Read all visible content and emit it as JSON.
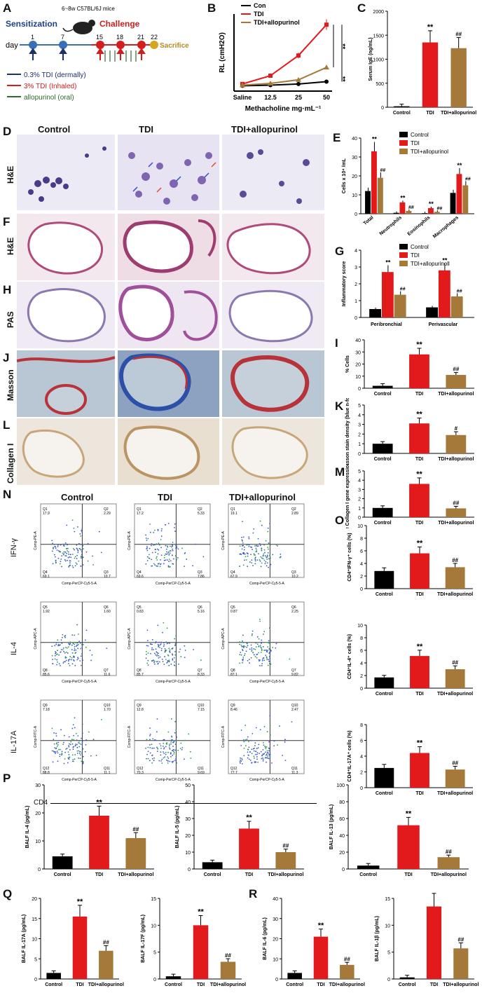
{
  "panels": {
    "A": "A",
    "B": "B",
    "C": "C",
    "D": "D",
    "E": "E",
    "F": "F",
    "G": "G",
    "H": "H",
    "I": "I",
    "J": "J",
    "K": "K",
    "L": "L",
    "M": "M",
    "N": "N",
    "O": "O",
    "P": "P",
    "Q": "Q",
    "R": "R"
  },
  "groups": {
    "control": "Control",
    "tdi": "TDI",
    "tdi_allo": "TDI+allopurinol"
  },
  "sig": {
    "star": "**",
    "hash": "##",
    "hash1": "#"
  },
  "schematic": {
    "mice": "6~8w C57BL/6J mice",
    "sensitization": "Sensitization",
    "challenge": "Challenge",
    "sacrifice": "Sacrifice",
    "day_label": "day",
    "days": [
      "1",
      "7",
      "15",
      "18",
      "21",
      "22"
    ],
    "legend": [
      {
        "text": "0.3% TDI (dermally)",
        "color": "#1f2f6b"
      },
      {
        "text": "3% TDI (Inhaled)",
        "color": "#d21e1e"
      },
      {
        "text": "allopurinol (oral)",
        "color": "#2e6b2e"
      }
    ]
  },
  "stain_labels": {
    "D": "H&E",
    "F": "H&E",
    "H": "PAS",
    "J": "Masson",
    "L": "Collagen I"
  },
  "colors": {
    "control": "#000000",
    "tdi": "#e31a1c",
    "tdi_allo": "#a5793a"
  },
  "chart_data": [
    {
      "panel": "B",
      "type": "line",
      "x": [
        "Saline",
        "12.5",
        "25",
        "50"
      ],
      "xlabel": "Methacholine mg·mL⁻¹",
      "ylabel": "RL (cmH2O)",
      "series": [
        {
          "name": "Con",
          "values": [
            0.9,
            1.0,
            1.2,
            1.6
          ]
        },
        {
          "name": "TDI",
          "values": [
            1.2,
            2.6,
            6.0,
            11.2
          ]
        },
        {
          "name": "TDI+allopurinol",
          "values": [
            1.0,
            1.3,
            1.9,
            4.0
          ]
        }
      ],
      "ylim": [
        0,
        13
      ]
    },
    {
      "panel": "C",
      "type": "bar",
      "categories": [
        "Control",
        "TDI",
        "TDI+allopurinol"
      ],
      "values": [
        20,
        1350,
        1230
      ],
      "ylabel": "Serum IgE (ng/mL)",
      "ylim": [
        0,
        2000
      ],
      "yticks": [
        "0",
        "500",
        "1000",
        "1500",
        "2000"
      ]
    },
    {
      "panel": "E",
      "type": "bar",
      "categories": [
        "Total",
        "Neutrophils",
        "Eosinophils",
        "Macrophages"
      ],
      "ylabel": "Cells x 10⁴ /mL",
      "ylim": [
        0,
        40
      ],
      "yticks": [
        "0",
        "10",
        "20",
        "30",
        "40"
      ],
      "series": [
        {
          "name": "Control",
          "values": [
            12,
            0.5,
            0.3,
            11
          ]
        },
        {
          "name": "TDI",
          "values": [
            33,
            6,
            3,
            21
          ]
        },
        {
          "name": "TDI+allopurinol",
          "values": [
            19,
            1.5,
            1,
            15
          ]
        }
      ]
    },
    {
      "panel": "G",
      "type": "bar",
      "categories": [
        "Peribronchial",
        "Perivascular"
      ],
      "ylabel": "Inflammatory score",
      "ylim": [
        0,
        4
      ],
      "yticks": [
        "0",
        "1",
        "2",
        "3",
        "4"
      ],
      "series": [
        {
          "name": "Control",
          "values": [
            0.5,
            0.6
          ]
        },
        {
          "name": "TDI",
          "values": [
            2.7,
            2.8
          ]
        },
        {
          "name": "TDI+allopurinoll",
          "values": [
            1.35,
            1.25
          ]
        }
      ]
    },
    {
      "panel": "I",
      "type": "bar",
      "categories": [
        "Control",
        "TDI",
        "TDI+allopurinol"
      ],
      "values": [
        2,
        28,
        11
      ],
      "ylabel": "% Cells",
      "ylim": [
        0,
        40
      ],
      "yticks": [
        "0",
        "10",
        "20",
        "30",
        "40"
      ]
    },
    {
      "panel": "K",
      "type": "bar",
      "categories": [
        "Control",
        "TDI",
        "TDI+allopurinol"
      ],
      "values": [
        1,
        3.1,
        1.9
      ],
      "ylabel": "Masson stain density (blue n-folds)",
      "ylim": [
        0,
        5
      ],
      "yticks": [
        "0",
        "1",
        "2",
        "3",
        "4",
        "5"
      ]
    },
    {
      "panel": "M",
      "type": "bar",
      "categories": [
        "Control",
        "TDI",
        "TDI+allopurinol"
      ],
      "values": [
        1,
        3.6,
        0.95
      ],
      "ylabel": "Relative Collagen I gene expression in lungs",
      "ylim": [
        0,
        5
      ],
      "yticks": [
        "0",
        "1",
        "2",
        "3",
        "4",
        "5"
      ]
    },
    {
      "panel": "O1",
      "type": "bar",
      "categories": [
        "Control",
        "TDI",
        "TDI+allopurinol"
      ],
      "values": [
        2.8,
        5.6,
        3.4
      ],
      "ylabel": "CD4⁺IFN-γ⁺ cells (%)",
      "ylim": [
        0,
        10
      ],
      "yticks": [
        "0",
        "2",
        "4",
        "6",
        "8",
        "10"
      ]
    },
    {
      "panel": "O2",
      "type": "bar",
      "categories": [
        "Control",
        "TDI",
        "TDI+allopurinol"
      ],
      "values": [
        1.7,
        5.1,
        3.0
      ],
      "ylabel": "CD4⁺IL-4⁺ cells (%)",
      "ylim": [
        0,
        10
      ],
      "yticks": [
        "0",
        "2",
        "4",
        "6",
        "8",
        "10"
      ]
    },
    {
      "panel": "O3",
      "type": "bar",
      "categories": [
        "Control",
        "TDI",
        "TDI+allopurinol"
      ],
      "values": [
        2.5,
        4.4,
        2.3
      ],
      "ylabel": "CD4⁺IL-17A⁺ cells (%)",
      "ylim": [
        0,
        8
      ],
      "yticks": [
        "0",
        "2",
        "4",
        "6",
        "8"
      ]
    },
    {
      "panel": "P1",
      "type": "bar",
      "categories": [
        "Control",
        "TDI",
        "TDI+allopurinol"
      ],
      "values": [
        4.5,
        19,
        11
      ],
      "ylabel": "BALF IL-4 (pg/mL)",
      "ylim": [
        0,
        30
      ],
      "yticks": [
        "0",
        "10",
        "20",
        "30"
      ]
    },
    {
      "panel": "P2",
      "type": "bar",
      "categories": [
        "Control",
        "TDI",
        "TDI+allopurinol"
      ],
      "values": [
        4,
        24,
        10
      ],
      "ylabel": "BALF IL-5 (pg/mL)",
      "ylim": [
        0,
        50
      ],
      "yticks": [
        "0",
        "10",
        "20",
        "30",
        "40",
        "50"
      ]
    },
    {
      "panel": "P3",
      "type": "bar",
      "categories": [
        "Control",
        "TDI",
        "TDI+allopurinol"
      ],
      "values": [
        4,
        52,
        14
      ],
      "ylabel": "BALF IL-13 (pg/mL)",
      "ylim": [
        0,
        100
      ],
      "yticks": [
        "0",
        "20",
        "40",
        "60",
        "80",
        "100"
      ]
    },
    {
      "panel": "Q1",
      "type": "bar",
      "categories": [
        "Control",
        "TDI",
        "TDI+allopurinol"
      ],
      "values": [
        1.5,
        15.5,
        7
      ],
      "ylabel": "BALF IL-17A (pg/mL)",
      "ylim": [
        0,
        20
      ],
      "yticks": [
        "0",
        "5",
        "10",
        "15",
        "20"
      ]
    },
    {
      "panel": "Q2",
      "type": "bar",
      "categories": [
        "Control",
        "TDI",
        "TDI+allopurinol"
      ],
      "values": [
        0.5,
        10,
        3.2
      ],
      "ylabel": "BALF IL-17F (pg/mL)",
      "ylim": [
        0,
        15
      ],
      "yticks": [
        "0",
        "5",
        "10",
        "15"
      ]
    },
    {
      "panel": "R1",
      "type": "bar",
      "categories": [
        "Control",
        "TDI",
        "TDI+allopurinol"
      ],
      "values": [
        3,
        21,
        7
      ],
      "ylabel": "BALF IL-6 (pg/mL)",
      "ylim": [
        0,
        40
      ],
      "yticks": [
        "0",
        "10",
        "20",
        "30",
        "40"
      ]
    },
    {
      "panel": "R2",
      "type": "bar",
      "categories": [
        "Control",
        "TDI",
        "TDI+allopurinol"
      ],
      "values": [
        0.3,
        13.5,
        5.7
      ],
      "ylabel": "BALF IL-1β (pg/mL)",
      "ylim": [
        0,
        15
      ],
      "yticks": [
        "0",
        "5",
        "10",
        "15"
      ]
    }
  ],
  "flow": {
    "rows": [
      {
        "label": "IFN-γ",
        "yaxis": "Comp-PE-A",
        "q": [
          [
            "Q1",
            "17.9"
          ],
          [
            "Q2",
            "2.29"
          ],
          [
            "Q4",
            "69.1"
          ],
          [
            "Q3",
            "10.7"
          ]
        ],
        "q2": [
          [
            "Q1",
            "17.2"
          ],
          [
            "Q2",
            "5.33"
          ],
          [
            "Q4",
            "69.6"
          ],
          [
            "Q3",
            "7.86"
          ]
        ],
        "q3": [
          [
            "Q1",
            "19.1"
          ],
          [
            "Q2",
            "2.89"
          ],
          [
            "Q4",
            "67.9"
          ],
          [
            "Q3",
            "10.2"
          ]
        ]
      },
      {
        "label": "IL-4",
        "yaxis": "Comp-APC-A",
        "q": [
          [
            "Q5",
            "1.92"
          ],
          [
            "Q6",
            "1.60"
          ],
          [
            "Q8",
            "85.6"
          ],
          [
            "Q7",
            "11.6"
          ]
        ],
        "q2": [
          [
            "Q5",
            "0.83"
          ],
          [
            "Q6",
            "5.16"
          ],
          [
            "Q8",
            "85.7"
          ],
          [
            "Q7",
            "8.33"
          ]
        ],
        "q3": [
          [
            "Q5",
            "0.87"
          ],
          [
            "Q6",
            "2.25"
          ],
          [
            "Q8",
            "87.1"
          ],
          [
            "Q7",
            "9.82"
          ]
        ]
      },
      {
        "label": "IL-17A",
        "yaxis": "Comp-FITC-A",
        "q": [
          [
            "Q9",
            "7.18"
          ],
          [
            "Q10",
            "1.70"
          ],
          [
            "Q12",
            "88.8"
          ],
          [
            "Q11",
            "11.1"
          ]
        ],
        "q2": [
          [
            "Q9",
            "12.8"
          ],
          [
            "Q10",
            "7.15"
          ],
          [
            "Q12",
            "70.3"
          ],
          [
            "Q11",
            "9.69"
          ]
        ],
        "q3": [
          [
            "Q9",
            "8.46"
          ],
          [
            "Q10",
            "2.47"
          ],
          [
            "Q12",
            "77.7"
          ],
          [
            "Q11",
            "11.3"
          ]
        ]
      }
    ],
    "xaxis": "Comp-PerCP-Cy5-5-A",
    "cd4": "CD4"
  }
}
